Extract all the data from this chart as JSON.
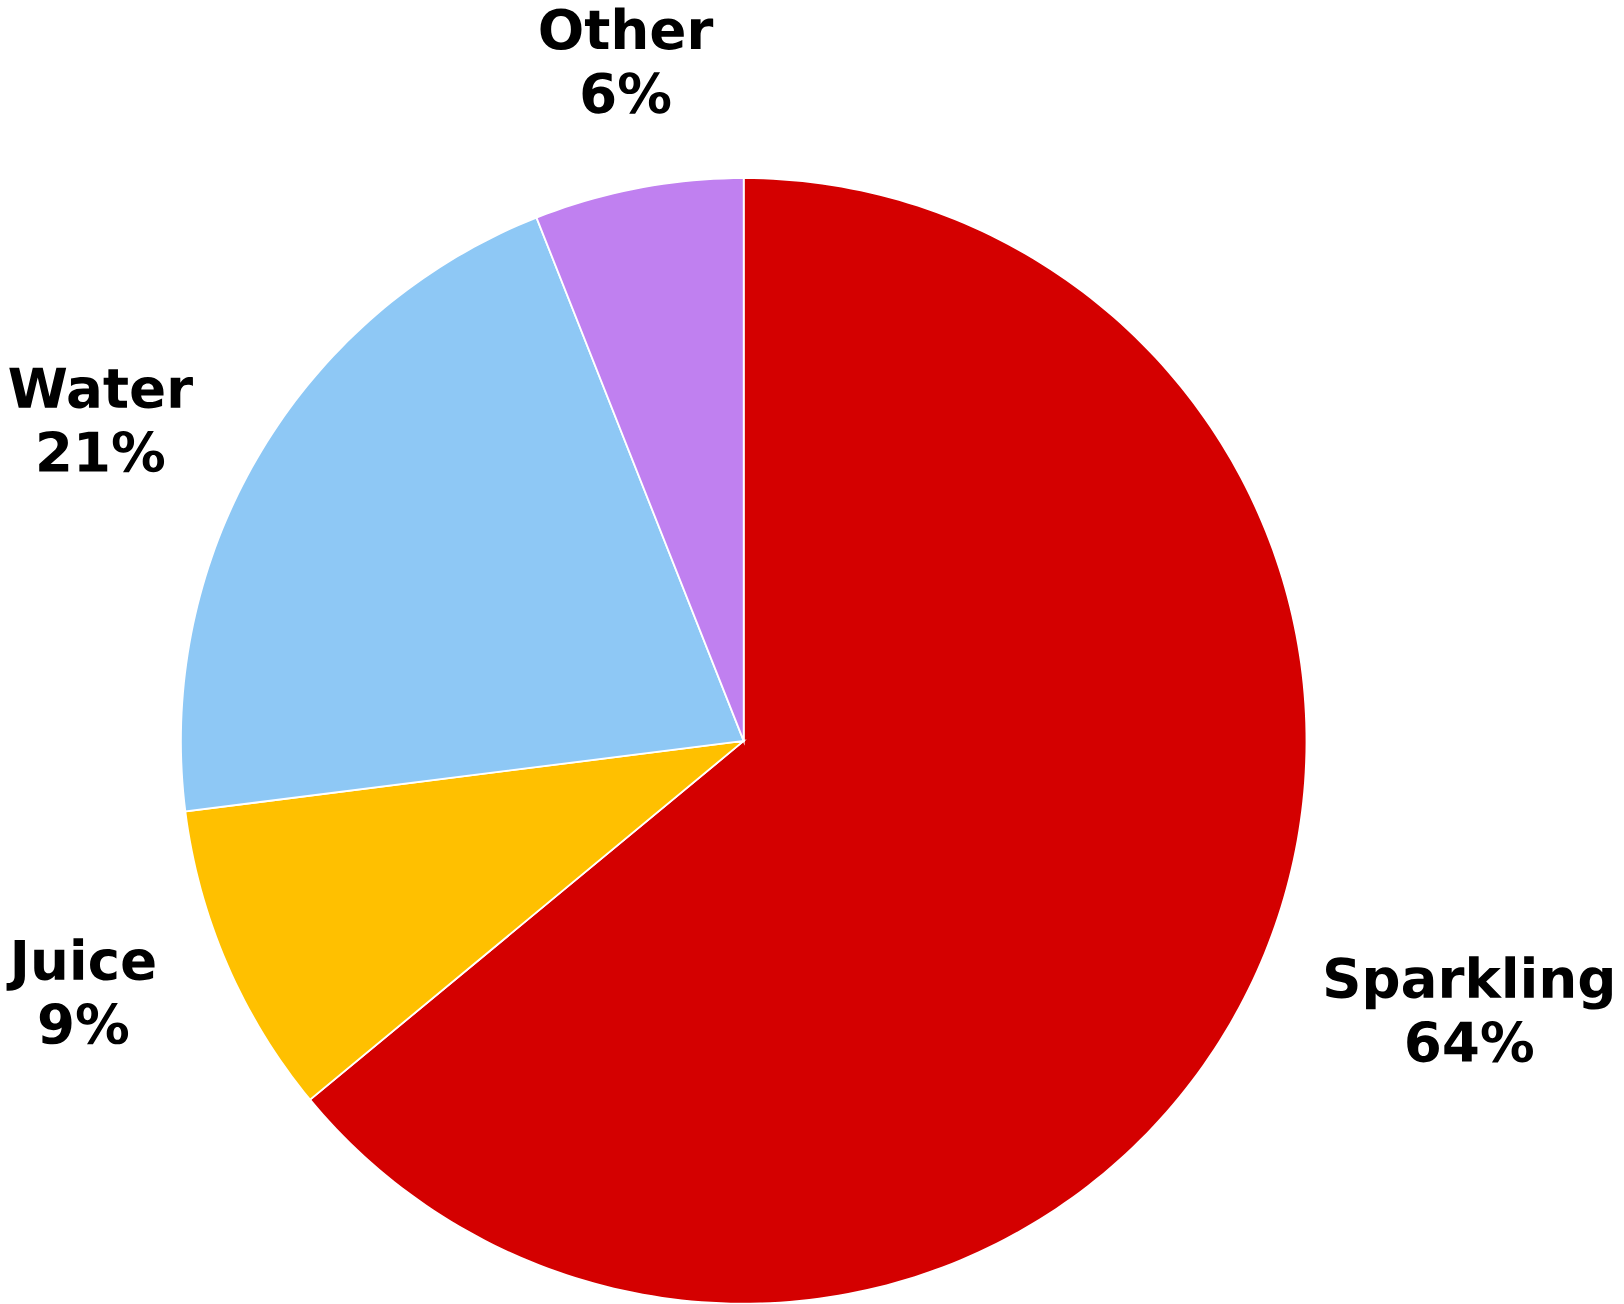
{
  "chart_data": {
    "type": "pie",
    "categories": [
      "Sparkling",
      "Juice",
      "Water",
      "Other"
    ],
    "values": [
      64,
      9,
      21,
      6
    ],
    "value_labels": [
      "64%",
      "9%",
      "21%",
      "6%"
    ],
    "colors": [
      "#d40000",
      "#ffc000",
      "#8ec8f5",
      "#c080f0"
    ]
  }
}
